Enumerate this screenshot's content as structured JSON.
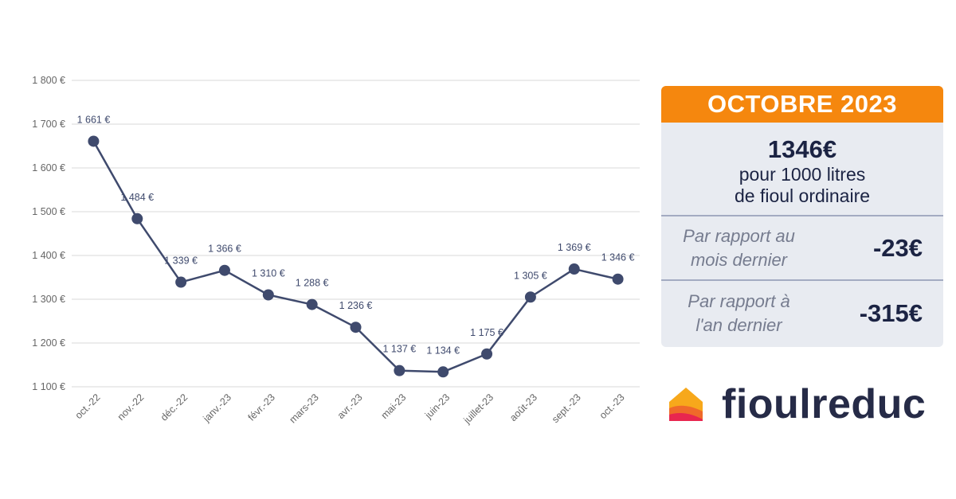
{
  "chart_data": {
    "type": "line",
    "categories": [
      "oct.-22",
      "nov.-22",
      "déc.-22",
      "janv.-23",
      "févr.-23",
      "mars-23",
      "avr.-23",
      "mai-23",
      "juin-23",
      "juillet-23",
      "août-23",
      "sept.-23",
      "oct.-23"
    ],
    "values": [
      1661,
      1484,
      1339,
      1366,
      1310,
      1288,
      1236,
      1137,
      1134,
      1175,
      1305,
      1369,
      1346
    ],
    "data_labels": [
      "1 661 €",
      "1 484 €",
      "1 339 €",
      "1 366 €",
      "1 310 €",
      "1 288 €",
      "1 236 €",
      "1 137 €",
      "1 134 €",
      "1 175 €",
      "1 305 €",
      "1 369 €",
      "1 346 €"
    ],
    "ylim": [
      1100,
      1800
    ],
    "yticks": [
      1100,
      1200,
      1300,
      1400,
      1500,
      1600,
      1700,
      1800
    ],
    "ytick_labels": [
      "1 100 €",
      "1 200 €",
      "1 300 €",
      "1 400 €",
      "1 500 €",
      "1 600 €",
      "1 700 €",
      "1 800 €"
    ],
    "grid": true,
    "line_color": "#3f4a6d"
  },
  "card": {
    "header": "OCTOBRE 2023",
    "price": "1346€",
    "description_line1": "pour 1000 litres",
    "description_line2": "de fioul ordinaire",
    "month_label_line1": "Par rapport au",
    "month_label_line2": "mois dernier",
    "month_value": "-23€",
    "year_label_line1": "Par rapport à",
    "year_label_line2": "l'an dernier",
    "year_value": "-315€",
    "header_color": "#f5870e",
    "background_color": "#e8ebf1"
  },
  "brand": {
    "name": "fioulreduc",
    "logo_icon": "house-flame-icon"
  }
}
